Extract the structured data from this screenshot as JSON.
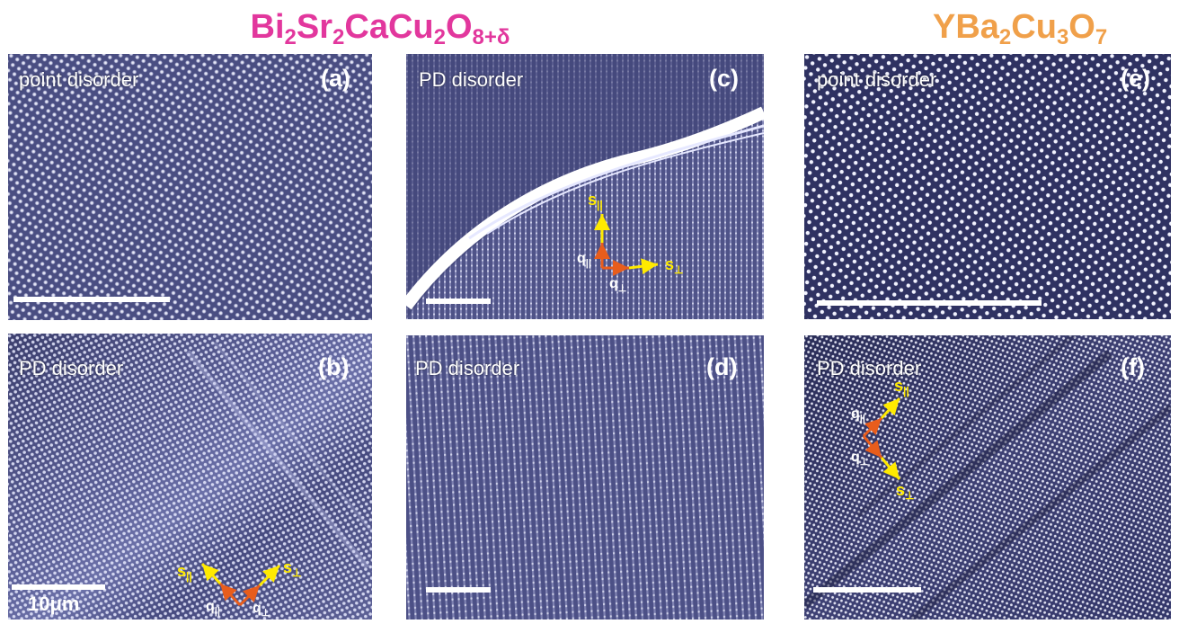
{
  "headers": {
    "left": {
      "base": [
        "Bi",
        "Sr",
        "CaCu",
        "O"
      ],
      "subs": [
        "2",
        "2",
        "2",
        "8+δ"
      ]
    },
    "right": {
      "base": [
        "YBa",
        "Cu",
        "O"
      ],
      "subs": [
        "2",
        "3",
        "7"
      ]
    }
  },
  "panels": [
    {
      "id": "a",
      "tag": "(a)",
      "label": "point disorder"
    },
    {
      "id": "b",
      "tag": "(b)",
      "label": "PD disorder",
      "scale_text": "10μm"
    },
    {
      "id": "c",
      "tag": "(c)",
      "label": "PD disorder"
    },
    {
      "id": "d",
      "tag": "(d)",
      "label": "PD disorder"
    },
    {
      "id": "e",
      "tag": "(e)",
      "label": "point disorder"
    },
    {
      "id": "f",
      "tag": "(f)",
      "label": "PD disorder"
    }
  ],
  "vectors": {
    "s_par": "s",
    "s_par_sub": "||",
    "s_perp": "s",
    "s_perp_sub": "⊥",
    "q_par": "q",
    "q_par_sub": "||",
    "q_perp": "q",
    "q_perp_sub": "⊥"
  },
  "colors": {
    "background_blue": "#4f5388",
    "dot_white": "#ffffff",
    "title_bscco": "#e2379d",
    "title_ybco": "#f0a04a",
    "s_arrow": "#ffea00",
    "q_arrow": "#e85d1c"
  }
}
